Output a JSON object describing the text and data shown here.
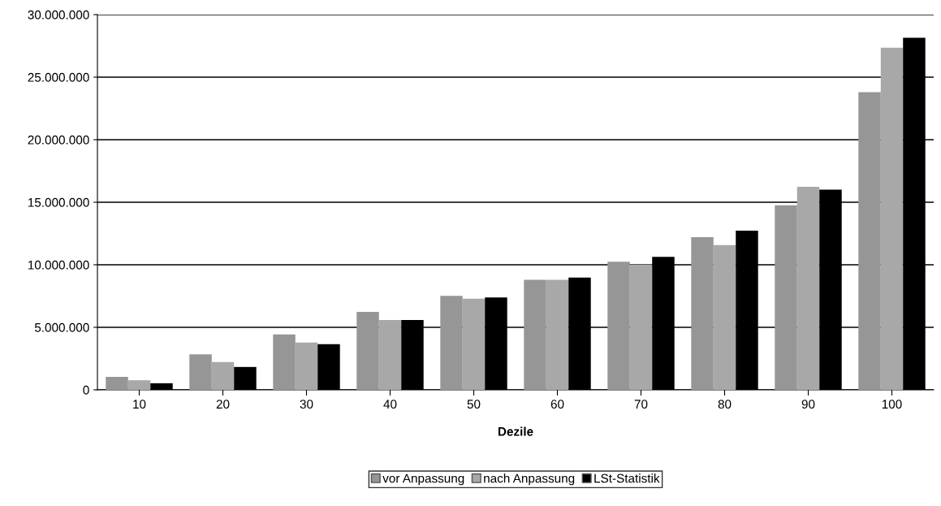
{
  "chart_data": {
    "type": "bar",
    "xlabel": "Dezile",
    "categories": [
      "10",
      "20",
      "30",
      "40",
      "50",
      "60",
      "70",
      "80",
      "90",
      "100"
    ],
    "series": [
      {
        "name": "vor Anpassung",
        "color": "#969696",
        "values": [
          1040000,
          2840000,
          4430000,
          6240000,
          7520000,
          8800000,
          10250000,
          12200000,
          14750000,
          23800000
        ]
      },
      {
        "name": "nach Anpassung",
        "color": "#a8a8a8",
        "values": [
          770000,
          2220000,
          3780000,
          5590000,
          7290000,
          8800000,
          10010000,
          11570000,
          16240000,
          27350000
        ]
      },
      {
        "name": "LSt-Statistik",
        "color": "#000000",
        "values": [
          530000,
          1830000,
          3660000,
          5590000,
          7390000,
          8970000,
          10630000,
          12730000,
          16000000,
          28150000
        ]
      }
    ],
    "ylim": [
      0,
      30000000
    ],
    "yticks": [
      {
        "value": 0,
        "label": "0"
      },
      {
        "value": 5000000,
        "label": "5.000.000"
      },
      {
        "value": 10000000,
        "label": "10.000.000"
      },
      {
        "value": 15000000,
        "label": "15.000.000"
      },
      {
        "value": 20000000,
        "label": "20.000.000"
      },
      {
        "value": 25000000,
        "label": "25.000.000"
      },
      {
        "value": 30000000,
        "label": "30.000.000"
      }
    ],
    "grid": "y",
    "legend": "bottom"
  }
}
